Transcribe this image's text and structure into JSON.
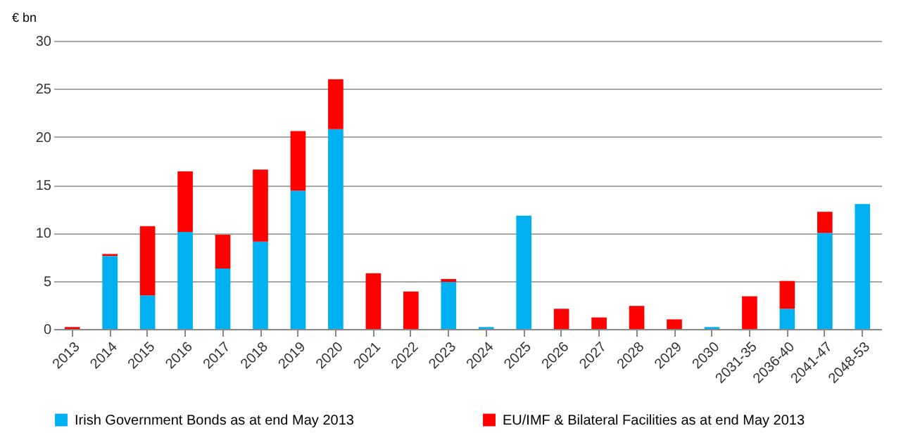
{
  "chart_data": {
    "type": "bar",
    "stacked": true,
    "ylabel": "€ bn",
    "categories": [
      "2013",
      "2014",
      "2015",
      "2016",
      "2017",
      "2018",
      "2019",
      "2020",
      "2021",
      "2022",
      "2023",
      "2024",
      "2025",
      "2026",
      "2027",
      "2028",
      "2029",
      "2030",
      "2031-35",
      "2036-40",
      "2041-47",
      "2048-53"
    ],
    "series": [
      {
        "name": "Irish Government Bonds as at end May 2013",
        "color": "#00b0f0",
        "values": [
          0,
          7.6,
          3.5,
          10.1,
          6.3,
          9.1,
          14.4,
          20.8,
          0,
          0,
          4.9,
          0.2,
          11.8,
          0,
          0,
          0,
          0,
          0.2,
          0,
          2.1,
          10.0,
          13.0
        ]
      },
      {
        "name": "EU/IMF & Bilateral Facilities as at end May 2013",
        "color": "#ff0000",
        "values": [
          0.2,
          0.2,
          7.2,
          6.3,
          3.5,
          7.5,
          6.2,
          5.2,
          5.8,
          3.9,
          0.3,
          0,
          0,
          2.1,
          1.2,
          2.4,
          1.0,
          0,
          3.4,
          2.9,
          2.2,
          0
        ]
      }
    ],
    "ylim": [
      0,
      30
    ],
    "yticks": [
      0,
      5,
      10,
      15,
      20,
      25,
      30
    ],
    "grid": "y",
    "legend": "bottom"
  }
}
